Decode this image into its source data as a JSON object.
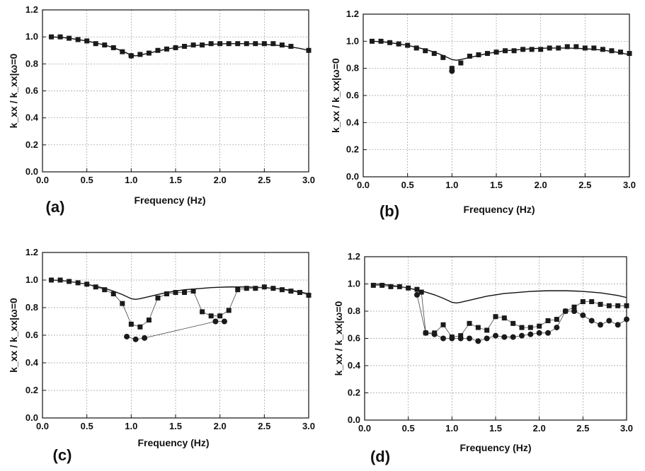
{
  "chart_data": [
    {
      "type": "line",
      "panel_label": "(a)",
      "xlabel": "Frequency (Hz)",
      "ylabel": "k_xx / k_xx|ω=0",
      "xlim": [
        0,
        3.0
      ],
      "ylim": [
        0,
        1.2
      ],
      "xticks": [
        "0.0",
        "0.5",
        "1.0",
        "1.5",
        "2.0",
        "2.5",
        "3.0"
      ],
      "yticks": [
        "0.0",
        "0.2",
        "0.4",
        "0.6",
        "0.8",
        "1.0",
        "1.2"
      ],
      "grid": true,
      "series": [
        {
          "style": "line",
          "x": [
            0.1,
            0.2,
            0.3,
            0.4,
            0.5,
            0.6,
            0.7,
            0.8,
            0.9,
            1.0,
            1.05,
            1.1,
            1.2,
            1.3,
            1.4,
            1.5,
            1.6,
            1.7,
            1.8,
            1.9,
            2.0,
            2.1,
            2.2,
            2.3,
            2.4,
            2.5,
            2.6,
            2.7,
            2.8,
            2.9,
            3.0
          ],
          "y": [
            1.0,
            0.997,
            0.99,
            0.98,
            0.97,
            0.955,
            0.94,
            0.92,
            0.895,
            0.865,
            0.86,
            0.865,
            0.88,
            0.895,
            0.91,
            0.92,
            0.93,
            0.935,
            0.94,
            0.945,
            0.948,
            0.95,
            0.95,
            0.95,
            0.948,
            0.945,
            0.94,
            0.935,
            0.925,
            0.915,
            0.9
          ]
        },
        {
          "style": "square",
          "x": [
            0.1,
            0.2,
            0.3,
            0.4,
            0.5,
            0.6,
            0.7,
            0.8,
            0.9,
            1.0,
            1.1,
            1.2,
            1.3,
            1.4,
            1.5,
            1.6,
            1.7,
            1.8,
            1.9,
            2.0,
            2.1,
            2.2,
            2.3,
            2.4,
            2.5,
            2.6,
            2.7,
            2.8,
            3.0
          ],
          "y": [
            1.0,
            1.0,
            0.99,
            0.98,
            0.97,
            0.95,
            0.94,
            0.92,
            0.89,
            0.86,
            0.87,
            0.88,
            0.9,
            0.91,
            0.92,
            0.93,
            0.94,
            0.94,
            0.95,
            0.95,
            0.95,
            0.95,
            0.95,
            0.95,
            0.95,
            0.95,
            0.94,
            0.93,
            0.9
          ]
        },
        {
          "style": "circle",
          "x": [
            1.0
          ],
          "y": [
            0.86
          ]
        }
      ]
    },
    {
      "type": "line",
      "panel_label": "(b)",
      "xlabel": "Frequency (Hz)",
      "ylabel": "k_xx / k_xx|ω=0",
      "xlim": [
        0,
        3.0
      ],
      "ylim": [
        0,
        1.2
      ],
      "xticks": [
        "0.0",
        "0.5",
        "1.0",
        "1.5",
        "2.0",
        "2.5",
        "3.0"
      ],
      "yticks": [
        "0.0",
        "0.2",
        "0.4",
        "0.6",
        "0.8",
        "1.0",
        "1.2"
      ],
      "grid": true,
      "series": [
        {
          "style": "line",
          "x": [
            0.1,
            0.2,
            0.3,
            0.4,
            0.5,
            0.6,
            0.7,
            0.8,
            0.9,
            1.0,
            1.05,
            1.1,
            1.2,
            1.3,
            1.4,
            1.5,
            1.6,
            1.7,
            1.8,
            1.9,
            2.0,
            2.1,
            2.2,
            2.3,
            2.4,
            2.5,
            2.6,
            2.7,
            2.8,
            2.9,
            3.0
          ],
          "y": [
            1.0,
            0.997,
            0.99,
            0.98,
            0.97,
            0.955,
            0.94,
            0.92,
            0.895,
            0.865,
            0.86,
            0.865,
            0.88,
            0.895,
            0.91,
            0.92,
            0.93,
            0.935,
            0.94,
            0.945,
            0.948,
            0.95,
            0.95,
            0.95,
            0.948,
            0.945,
            0.94,
            0.935,
            0.925,
            0.915,
            0.9
          ]
        },
        {
          "style": "square",
          "x": [
            0.1,
            0.2,
            0.3,
            0.4,
            0.5,
            0.6,
            0.7,
            0.8,
            0.9,
            1.0,
            1.1,
            1.2,
            1.3,
            1.4,
            1.5,
            1.6,
            1.7,
            1.8,
            1.9,
            2.0,
            2.1,
            2.2,
            2.3,
            2.4,
            2.5,
            2.6,
            2.7,
            2.8,
            2.9,
            3.0
          ],
          "y": [
            1.0,
            1.0,
            0.99,
            0.98,
            0.97,
            0.95,
            0.93,
            0.91,
            0.88,
            0.8,
            0.84,
            0.89,
            0.9,
            0.91,
            0.92,
            0.93,
            0.93,
            0.94,
            0.94,
            0.94,
            0.95,
            0.95,
            0.96,
            0.96,
            0.95,
            0.95,
            0.94,
            0.93,
            0.92,
            0.91
          ]
        },
        {
          "style": "circle",
          "x": [
            1.0
          ],
          "y": [
            0.78
          ]
        }
      ]
    },
    {
      "type": "line",
      "panel_label": "(c)",
      "xlabel": "Frequency (Hz)",
      "ylabel": "k_xx / k_xx|ω=0",
      "xlim": [
        0,
        3.0
      ],
      "ylim": [
        0,
        1.2
      ],
      "xticks": [
        "0.0",
        "0.5",
        "1.0",
        "1.5",
        "2.0",
        "2.5",
        "3.0"
      ],
      "yticks": [
        "0.0",
        "0.2",
        "0.4",
        "0.6",
        "0.8",
        "1.0",
        "1.2"
      ],
      "grid": true,
      "series": [
        {
          "style": "line",
          "x": [
            0.1,
            0.2,
            0.3,
            0.4,
            0.5,
            0.6,
            0.7,
            0.8,
            0.9,
            1.0,
            1.05,
            1.1,
            1.2,
            1.3,
            1.4,
            1.5,
            1.6,
            1.7,
            1.8,
            1.9,
            2.0,
            2.1,
            2.2,
            2.3,
            2.4,
            2.5,
            2.6,
            2.7,
            2.8,
            2.9,
            3.0
          ],
          "y": [
            1.0,
            0.997,
            0.99,
            0.98,
            0.97,
            0.955,
            0.94,
            0.92,
            0.895,
            0.865,
            0.86,
            0.865,
            0.88,
            0.895,
            0.91,
            0.92,
            0.93,
            0.935,
            0.94,
            0.945,
            0.948,
            0.95,
            0.95,
            0.95,
            0.948,
            0.945,
            0.94,
            0.935,
            0.925,
            0.915,
            0.9
          ]
        },
        {
          "style": "square-connected",
          "x": [
            0.1,
            0.2,
            0.3,
            0.4,
            0.5,
            0.6,
            0.7,
            0.8,
            0.9,
            1.0,
            1.1,
            1.2,
            1.3,
            1.4,
            1.5,
            1.6,
            1.7,
            1.8,
            1.9,
            2.0,
            2.1,
            2.2,
            2.3,
            2.4,
            2.5,
            2.6,
            2.7,
            2.8,
            2.9,
            3.0
          ],
          "y": [
            1.0,
            1.0,
            0.99,
            0.98,
            0.97,
            0.95,
            0.93,
            0.9,
            0.83,
            0.68,
            0.66,
            0.71,
            0.87,
            0.9,
            0.91,
            0.91,
            0.92,
            0.77,
            0.74,
            0.74,
            0.78,
            0.93,
            0.94,
            0.94,
            0.95,
            0.94,
            0.93,
            0.92,
            0.91,
            0.89
          ]
        },
        {
          "style": "circle-connected",
          "x": [
            0.95,
            1.05,
            1.15,
            1.95,
            2.05
          ],
          "y": [
            0.59,
            0.57,
            0.58,
            0.7,
            0.7
          ]
        }
      ]
    },
    {
      "type": "line",
      "panel_label": "(d)",
      "xlabel": "Frequency (Hz)",
      "ylabel": "k_xx / k_xx|ω=0",
      "xlim": [
        0,
        3.0
      ],
      "ylim": [
        0,
        1.2
      ],
      "xticks": [
        "0.0",
        "0.5",
        "1.0",
        "1.5",
        "2.0",
        "2.5",
        "3.0"
      ],
      "yticks": [
        "0.0",
        "0.2",
        "0.4",
        "0.6",
        "0.8",
        "1.0",
        "1.2"
      ],
      "grid": true,
      "series": [
        {
          "style": "line",
          "x": [
            0.1,
            0.2,
            0.3,
            0.4,
            0.5,
            0.6,
            0.7,
            0.8,
            0.9,
            1.0,
            1.05,
            1.1,
            1.2,
            1.3,
            1.4,
            1.5,
            1.6,
            1.7,
            1.8,
            1.9,
            2.0,
            2.1,
            2.2,
            2.3,
            2.4,
            2.5,
            2.6,
            2.7,
            2.8,
            2.9,
            3.0
          ],
          "y": [
            1.0,
            0.997,
            0.99,
            0.98,
            0.97,
            0.955,
            0.94,
            0.92,
            0.895,
            0.865,
            0.86,
            0.865,
            0.88,
            0.895,
            0.91,
            0.92,
            0.93,
            0.935,
            0.94,
            0.945,
            0.948,
            0.95,
            0.95,
            0.95,
            0.948,
            0.945,
            0.94,
            0.935,
            0.925,
            0.915,
            0.9
          ]
        },
        {
          "style": "square-connected",
          "x": [
            0.1,
            0.2,
            0.3,
            0.4,
            0.5,
            0.6,
            0.65,
            0.7,
            0.8,
            0.9,
            1.0,
            1.1,
            1.2,
            1.3,
            1.4,
            1.5,
            1.6,
            1.7,
            1.8,
            1.9,
            2.0,
            2.1,
            2.2,
            2.3,
            2.4,
            2.5,
            2.6,
            2.7,
            2.8,
            2.9,
            3.0
          ],
          "y": [
            0.99,
            0.99,
            0.98,
            0.98,
            0.97,
            0.96,
            0.94,
            0.64,
            0.64,
            0.7,
            0.61,
            0.62,
            0.71,
            0.68,
            0.66,
            0.76,
            0.75,
            0.71,
            0.68,
            0.68,
            0.69,
            0.73,
            0.74,
            0.8,
            0.83,
            0.87,
            0.87,
            0.85,
            0.84,
            0.84,
            0.84
          ]
        },
        {
          "style": "circle-connected",
          "x": [
            0.6,
            0.7,
            0.8,
            0.9,
            1.0,
            1.1,
            1.2,
            1.3,
            1.4,
            1.5,
            1.6,
            1.7,
            1.8,
            1.9,
            2.0,
            2.1,
            2.2,
            2.3,
            2.4,
            2.5,
            2.6,
            2.7,
            2.8,
            2.9,
            3.0
          ],
          "y": [
            0.92,
            0.64,
            0.63,
            0.6,
            0.6,
            0.6,
            0.6,
            0.58,
            0.6,
            0.62,
            0.61,
            0.61,
            0.62,
            0.63,
            0.64,
            0.64,
            0.68,
            0.8,
            0.8,
            0.77,
            0.73,
            0.7,
            0.73,
            0.7,
            0.74
          ]
        }
      ]
    }
  ]
}
